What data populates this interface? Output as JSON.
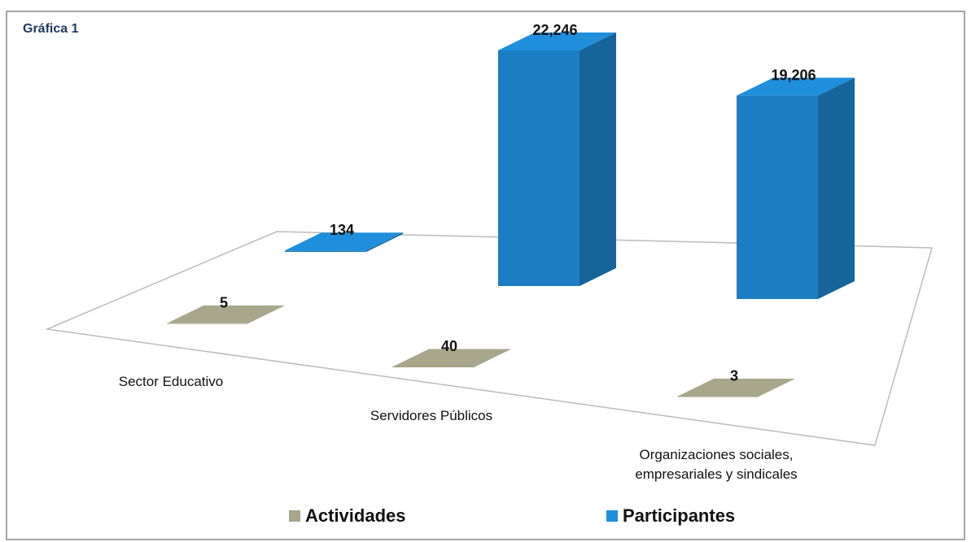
{
  "chart_data": {
    "type": "bar3d",
    "title": "Gráfica 1",
    "categories": [
      "Sector Educativo",
      "Servidores Públicos",
      "Organizaciones sociales, empresariales y sindicales"
    ],
    "series": [
      {
        "name": "Actividades",
        "color": "#a8a78c",
        "values": [
          5,
          40,
          3
        ]
      },
      {
        "name": "Participantes",
        "color": "#1f8fdc",
        "values": [
          134,
          22246,
          19206
        ],
        "value_labels": [
          "134",
          "22,246",
          "19,206"
        ]
      }
    ],
    "legend": "bottom"
  }
}
